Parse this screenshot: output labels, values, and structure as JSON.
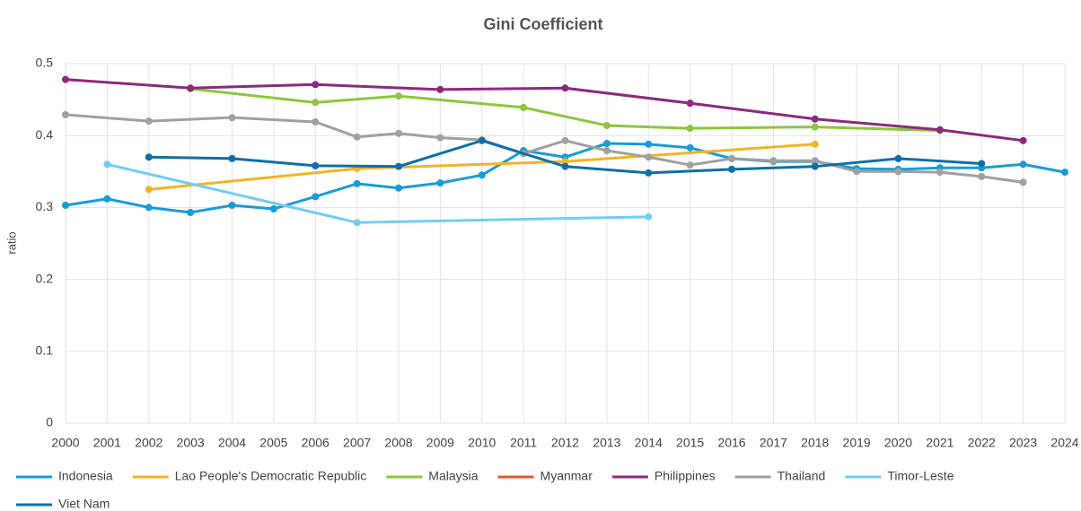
{
  "chart_data": {
    "type": "line",
    "title": "Gini Coefficient",
    "y_label": "ratio",
    "xlim": [
      2000,
      2024
    ],
    "xticks": [
      2000,
      2001,
      2002,
      2003,
      2004,
      2005,
      2006,
      2007,
      2008,
      2009,
      2010,
      2011,
      2012,
      2013,
      2014,
      2015,
      2016,
      2017,
      2018,
      2019,
      2020,
      2021,
      2022,
      2023,
      2024
    ],
    "ylim": [
      0,
      0.5
    ],
    "yticks": [
      0,
      0.1,
      0.2,
      0.3,
      0.4,
      0.5
    ],
    "grid": true,
    "legend": "bottom",
    "series": [
      {
        "name": "Indonesia",
        "color": "#1a9bd7",
        "x": [
          2000,
          2001,
          2002,
          2003,
          2004,
          2005,
          2006,
          2007,
          2008,
          2009,
          2010,
          2011,
          2012,
          2013,
          2014,
          2015,
          2016,
          2017,
          2018,
          2019,
          2020,
          2021,
          2022,
          2023,
          2024
        ],
        "values": [
          0.303,
          0.312,
          0.3,
          0.293,
          0.303,
          0.298,
          0.315,
          0.333,
          0.327,
          0.334,
          0.345,
          0.379,
          0.37,
          0.389,
          0.388,
          0.383,
          0.368,
          0.364,
          0.364,
          0.354,
          0.353,
          0.355,
          0.355,
          0.36,
          0.349
        ]
      },
      {
        "name": "Lao People's Democratic Republic",
        "color": "#f5b324",
        "x": [
          2002,
          2007,
          2012,
          2018
        ],
        "values": [
          0.325,
          0.354,
          0.364,
          0.388
        ]
      },
      {
        "name": "Malaysia",
        "color": "#8dc63f",
        "x": [
          2003,
          2006,
          2008,
          2011,
          2013,
          2015,
          2018,
          2021
        ],
        "values": [
          0.465,
          0.446,
          0.455,
          0.439,
          0.414,
          0.41,
          0.412,
          0.407
        ]
      },
      {
        "name": "Myanmar",
        "color": "#e4572e",
        "x": [],
        "values": []
      },
      {
        "name": "Philippines",
        "color": "#8b2a7a",
        "x": [
          2000,
          2003,
          2006,
          2009,
          2012,
          2015,
          2018,
          2021,
          2023
        ],
        "values": [
          0.478,
          0.466,
          0.471,
          0.464,
          0.466,
          0.445,
          0.423,
          0.408,
          0.393
        ]
      },
      {
        "name": "Thailand",
        "color": "#a0a0a0",
        "x": [
          2000,
          2002,
          2004,
          2006,
          2007,
          2008,
          2009,
          2010,
          2011,
          2012,
          2013,
          2014,
          2015,
          2016,
          2017,
          2018,
          2019,
          2020,
          2021,
          2022,
          2023
        ],
        "values": [
          0.429,
          0.42,
          0.425,
          0.419,
          0.398,
          0.403,
          0.397,
          0.394,
          0.375,
          0.393,
          0.379,
          0.37,
          0.359,
          0.368,
          0.365,
          0.365,
          0.35,
          0.35,
          0.349,
          0.343,
          0.335
        ]
      },
      {
        "name": "Timor-Leste",
        "color": "#74cdf0",
        "x": [
          2001,
          2007,
          2014
        ],
        "values": [
          0.36,
          0.279,
          0.287
        ]
      },
      {
        "name": "Viet Nam",
        "color": "#0e6fa8",
        "x": [
          2002,
          2004,
          2006,
          2008,
          2010,
          2012,
          2014,
          2016,
          2018,
          2020,
          2022
        ],
        "values": [
          0.37,
          0.368,
          0.358,
          0.357,
          0.393,
          0.357,
          0.348,
          0.353,
          0.357,
          0.368,
          0.361
        ]
      }
    ]
  }
}
